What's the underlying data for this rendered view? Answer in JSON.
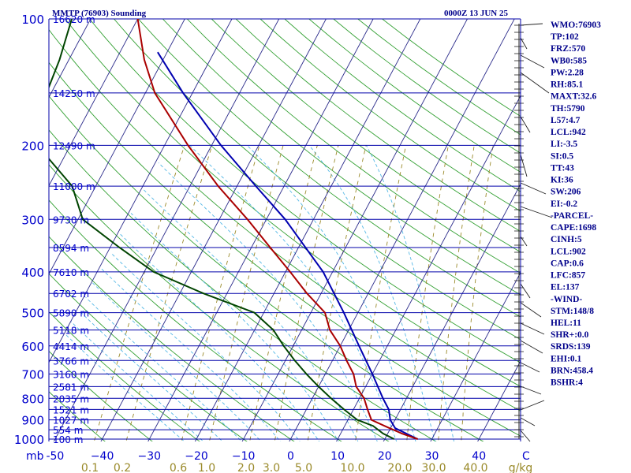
{
  "header": {
    "title": "MMTP (76903) Sounding",
    "datetime": "0000Z 13 JUN 25"
  },
  "chart_data": {
    "type": "skew-t",
    "pressure_levels": [
      100,
      200,
      300,
      400,
      500,
      600,
      700,
      800,
      900,
      1000
    ],
    "pressure_labels": [
      "100",
      "200",
      "300",
      "400",
      "500",
      "600",
      "700",
      "800",
      "900",
      "1000"
    ],
    "pressure_unit": "mb",
    "height_labels": [
      {
        "p": 100,
        "text": "16620 m"
      },
      {
        "p": 150,
        "text": "14250 m"
      },
      {
        "p": 200,
        "text": "12490 m"
      },
      {
        "p": 250,
        "text": "11000 m"
      },
      {
        "p": 300,
        "text": "9730 m"
      },
      {
        "p": 350,
        "text": "8594 m"
      },
      {
        "p": 400,
        "text": "7610 m"
      },
      {
        "p": 450,
        "text": "6702 m"
      },
      {
        "p": 500,
        "text": "5890 m"
      },
      {
        "p": 550,
        "text": "5118 m"
      },
      {
        "p": 600,
        "text": "4414 m"
      },
      {
        "p": 650,
        "text": "3766 m"
      },
      {
        "p": 700,
        "text": "3160 m"
      },
      {
        "p": 750,
        "text": "2581 m"
      },
      {
        "p": 800,
        "text": "2035 m"
      },
      {
        "p": 850,
        "text": "1521 m"
      },
      {
        "p": 900,
        "text": "1027 m"
      },
      {
        "p": 950,
        "text": "554 m"
      },
      {
        "p": 1000,
        "text": "100 m"
      }
    ],
    "temperature_ticks": [
      -50,
      -40,
      -30,
      -20,
      -10,
      0,
      10,
      20,
      30,
      40,
      50
    ],
    "temperature_tick_labels": [
      "-50",
      "−40",
      "−30",
      "−20",
      "−10",
      "0",
      "10",
      "20",
      "30",
      "40",
      "C"
    ],
    "mixing_ratio_labels": [
      "0.1",
      "0.2",
      "0.6",
      "1.0",
      "2.0",
      "3.0",
      "5.0",
      "10.0",
      "20.0",
      "30.0",
      "40.0",
      "g/kg"
    ],
    "temperature_profile": [
      {
        "p": 1000,
        "t": 27
      },
      {
        "p": 970,
        "t": 23
      },
      {
        "p": 935,
        "t": 19
      },
      {
        "p": 900,
        "t": 15
      },
      {
        "p": 850,
        "t": 13
      },
      {
        "p": 800,
        "t": 11
      },
      {
        "p": 750,
        "t": 8
      },
      {
        "p": 700,
        "t": 6
      },
      {
        "p": 650,
        "t": 3
      },
      {
        "p": 600,
        "t": 0
      },
      {
        "p": 550,
        "t": -4
      },
      {
        "p": 500,
        "t": -7
      },
      {
        "p": 450,
        "t": -13
      },
      {
        "p": 400,
        "t": -19
      },
      {
        "p": 350,
        "t": -26
      },
      {
        "p": 300,
        "t": -34
      },
      {
        "p": 250,
        "t": -44
      },
      {
        "p": 200,
        "t": -55
      },
      {
        "p": 150,
        "t": -68
      },
      {
        "p": 125,
        "t": -74
      },
      {
        "p": 100,
        "t": -80
      },
      {
        "p": 97,
        "t": -78
      }
    ],
    "dewpoint_profile": [
      {
        "p": 1000,
        "t": 22
      },
      {
        "p": 970,
        "t": 19
      },
      {
        "p": 930,
        "t": 16
      },
      {
        "p": 900,
        "t": 12
      },
      {
        "p": 850,
        "t": 8
      },
      {
        "p": 800,
        "t": 4
      },
      {
        "p": 750,
        "t": 0
      },
      {
        "p": 700,
        "t": -4
      },
      {
        "p": 650,
        "t": -8
      },
      {
        "p": 600,
        "t": -12
      },
      {
        "p": 550,
        "t": -16
      },
      {
        "p": 500,
        "t": -22
      },
      {
        "p": 450,
        "t": -35
      },
      {
        "p": 400,
        "t": -48
      },
      {
        "p": 350,
        "t": -58
      },
      {
        "p": 300,
        "t": -69
      },
      {
        "p": 250,
        "t": -75
      },
      {
        "p": 200,
        "t": -87
      },
      {
        "p": 150,
        "t": -91
      },
      {
        "p": 125,
        "t": -92
      },
      {
        "p": 100,
        "t": -94
      }
    ],
    "parcel_profile": [
      {
        "p": 1000,
        "t": 27
      },
      {
        "p": 942,
        "t": 21
      },
      {
        "p": 900,
        "t": 19
      },
      {
        "p": 850,
        "t": 17.5
      },
      {
        "p": 800,
        "t": 15
      },
      {
        "p": 700,
        "t": 10
      },
      {
        "p": 600,
        "t": 4
      },
      {
        "p": 500,
        "t": -3
      },
      {
        "p": 400,
        "t": -12
      },
      {
        "p": 300,
        "t": -26
      },
      {
        "p": 250,
        "t": -36
      },
      {
        "p": 200,
        "t": -48
      },
      {
        "p": 150,
        "t": -62
      },
      {
        "p": 120,
        "t": -72
      }
    ],
    "colors": {
      "isobar": "#0000aa",
      "isotherm": "#2a2a8a",
      "dry_adiabat": "#33a033",
      "moist_adiabat": "#55b8e6",
      "mixing_ratio": "#9a8a2a",
      "temperature": "#aa0000",
      "dewpoint": "#004400",
      "parcel": "#0000b0",
      "wind_barb": "#222222"
    }
  },
  "indices": [
    "WMO:76903",
    "TP:102",
    "FRZ:570",
    "WB0:585",
    "PW:2.28",
    "RH:85.1",
    "MAXT:32.6",
    "TH:5790",
    "L57:4.7",
    "LCL:942",
    "LI:-3.5",
    "SI:0.5",
    "TT:43",
    "KI:36",
    "SW:206",
    "EI:-0.2",
    "-PARCEL-",
    "CAPE:1698",
    "CINH:5",
    "LCL:902",
    "CAP:0.6",
    "LFC:857",
    "EL:137",
    "-WIND-",
    "STM:148/8",
    "HEL:11",
    "SHR+:0.0",
    "SRDS:139",
    "EHI:0.1",
    "BRN:458.4",
    "BSHR:4"
  ]
}
